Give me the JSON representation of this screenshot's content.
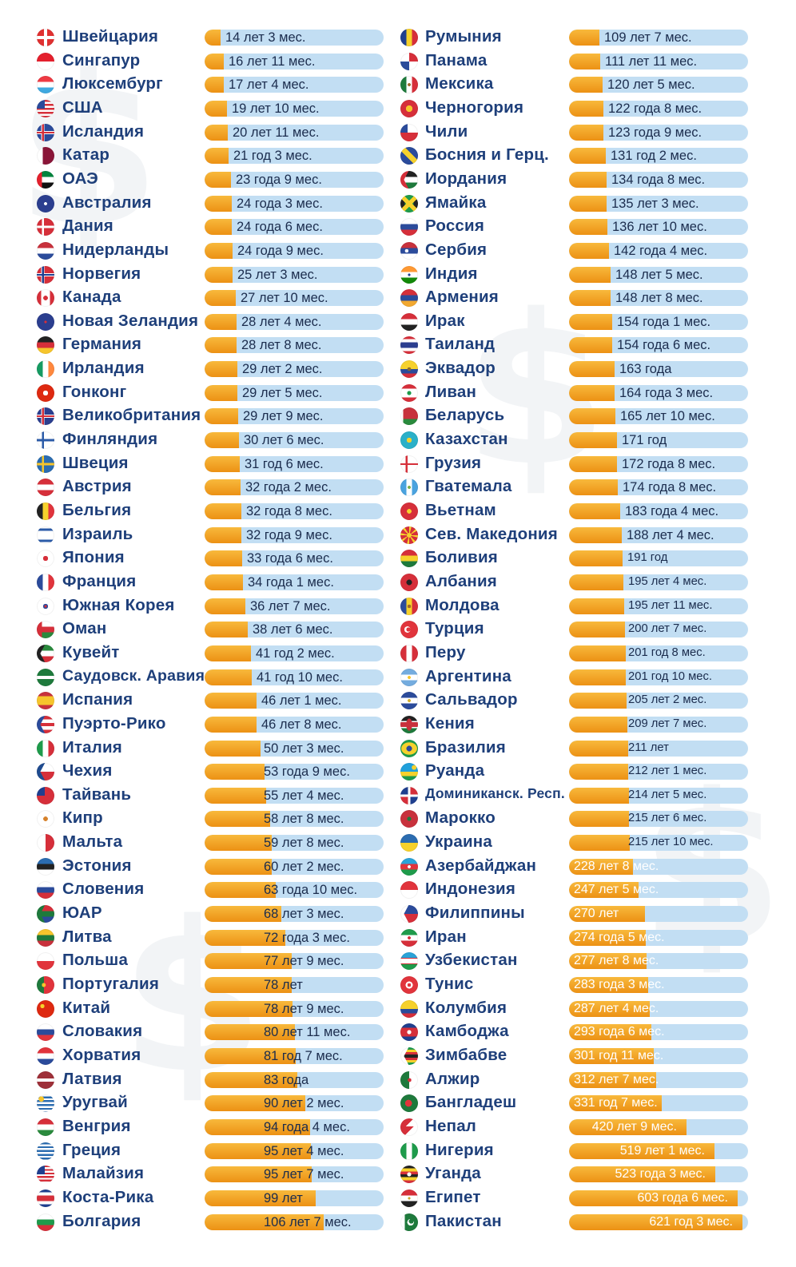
{
  "chart_data": {
    "type": "bar",
    "orientation": "horizontal",
    "title": "",
    "xlabel": "",
    "ylabel": "",
    "value_unit": "years",
    "columns": [
      {
        "xlim": [
          0,
          160
        ],
        "rows": [
          {
            "country": "Швейцария",
            "label": "14 лет 3 мес.",
            "value": 14.25,
            "flag": "switzerland-flag"
          },
          {
            "country": "Сингапур",
            "label": "16 лет 11 мес.",
            "value": 16.92,
            "flag": "singapore-flag"
          },
          {
            "country": "Люксембург",
            "label": "17 лет 4 мес.",
            "value": 17.33,
            "flag": "luxembourg-flag"
          },
          {
            "country": "США",
            "label": "19 лет 10 мес.",
            "value": 19.83,
            "flag": "usa-flag"
          },
          {
            "country": "Исландия",
            "label": "20 лет 11 мес.",
            "value": 20.92,
            "flag": "iceland-flag"
          },
          {
            "country": "Катар",
            "label": "21 год 3 мес.",
            "value": 21.25,
            "flag": "qatar-flag"
          },
          {
            "country": "ОАЭ",
            "label": "23 года 9 мес.",
            "value": 23.75,
            "flag": "uae-flag"
          },
          {
            "country": "Австралия",
            "label": "24 года 3 мес.",
            "value": 24.25,
            "flag": "australia-flag"
          },
          {
            "country": "Дания",
            "label": "24 года 6 мес.",
            "value": 24.5,
            "flag": "denmark-flag"
          },
          {
            "country": "Нидерланды",
            "label": "24 года 9 мес.",
            "value": 24.75,
            "flag": "netherlands-flag"
          },
          {
            "country": "Норвегия",
            "label": "25 лет 3 мес.",
            "value": 25.25,
            "flag": "norway-flag"
          },
          {
            "country": "Канада",
            "label": "27 лет 10 мес.",
            "value": 27.83,
            "flag": "canada-flag"
          },
          {
            "country": "Новая Зеландия",
            "label": "28 лет 4 мес.",
            "value": 28.33,
            "flag": "new-zealand-flag"
          },
          {
            "country": "Германия",
            "label": "28 лет 8 мес.",
            "value": 28.67,
            "flag": "germany-flag"
          },
          {
            "country": "Ирландия",
            "label": "29 лет 2 мес.",
            "value": 29.17,
            "flag": "ireland-flag"
          },
          {
            "country": "Гонконг",
            "label": "29 лет 5 мес.",
            "value": 29.42,
            "flag": "hong-kong-flag"
          },
          {
            "country": "Великобритания",
            "label": "29 лет 9 мес.",
            "value": 29.75,
            "flag": "uk-flag"
          },
          {
            "country": "Финляндия",
            "label": "30 лет 6 мес.",
            "value": 30.5,
            "flag": "finland-flag"
          },
          {
            "country": "Швеция",
            "label": "31 год 6 мес.",
            "value": 31.5,
            "flag": "sweden-flag"
          },
          {
            "country": "Австрия",
            "label": "32 года 2 мес.",
            "value": 32.17,
            "flag": "austria-flag"
          },
          {
            "country": "Бельгия",
            "label": "32 года 8 мес.",
            "value": 32.67,
            "flag": "belgium-flag"
          },
          {
            "country": "Израиль",
            "label": "32 года 9 мес.",
            "value": 32.75,
            "flag": "israel-flag"
          },
          {
            "country": "Япония",
            "label": "33 года 6 мес.",
            "value": 33.5,
            "flag": "japan-flag"
          },
          {
            "country": "Франция",
            "label": "34 года 1 мес.",
            "value": 34.08,
            "flag": "france-flag"
          },
          {
            "country": "Южная Корея",
            "label": "36 лет 7 мес.",
            "value": 36.58,
            "flag": "south-korea-flag"
          },
          {
            "country": "Оман",
            "label": "38 лет 6 мес.",
            "value": 38.5,
            "flag": "oman-flag"
          },
          {
            "country": "Кувейт",
            "label": "41 год 2 мес.",
            "value": 41.17,
            "flag": "kuwait-flag"
          },
          {
            "country": "Саудовск. Аравия",
            "label": "41 год 10 мес.",
            "value": 41.83,
            "flag": "saudi-arabia-flag"
          },
          {
            "country": "Испания",
            "label": "46 лет 1 мес.",
            "value": 46.08,
            "flag": "spain-flag"
          },
          {
            "country": "Пуэрто-Рико",
            "label": "46 лет 8 мес.",
            "value": 46.67,
            "flag": "puerto-rico-flag"
          },
          {
            "country": "Италия",
            "label": "50 лет 3 мес.",
            "value": 50.25,
            "flag": "italy-flag"
          },
          {
            "country": "Чехия",
            "label": "53 года 9 мес.",
            "value": 53.75,
            "flag": "czechia-flag"
          },
          {
            "country": "Тайвань",
            "label": "55 лет 4 мес.",
            "value": 55.33,
            "flag": "taiwan-flag"
          },
          {
            "country": "Кипр",
            "label": "58 лет 8 мес.",
            "value": 58.67,
            "flag": "cyprus-flag"
          },
          {
            "country": "Мальта",
            "label": "59 лет 8 мес.",
            "value": 59.67,
            "flag": "malta-flag"
          },
          {
            "country": "Эстония",
            "label": "60 лет 2 мес.",
            "value": 60.17,
            "flag": "estonia-flag"
          },
          {
            "country": "Словения",
            "label": "63 года 10 мес.",
            "value": 63.83,
            "flag": "slovenia-flag"
          },
          {
            "country": "ЮАР",
            "label": "68 лет 3 мес.",
            "value": 68.25,
            "flag": "south-africa-flag"
          },
          {
            "country": "Литва",
            "label": "72 года 3 мес.",
            "value": 72.25,
            "flag": "lithuania-flag"
          },
          {
            "country": "Польша",
            "label": "77 лет 9 мес.",
            "value": 77.75,
            "flag": "poland-flag"
          },
          {
            "country": "Португалия",
            "label": "78 лет",
            "value": 78,
            "flag": "portugal-flag"
          },
          {
            "country": "Китай",
            "label": "78 лет 9 мес.",
            "value": 78.75,
            "flag": "china-flag"
          },
          {
            "country": "Словакия",
            "label": "80 лет 11 мес.",
            "value": 80.92,
            "flag": "slovakia-flag"
          },
          {
            "country": "Хорватия",
            "label": "81 год 7 мес.",
            "value": 81.58,
            "flag": "croatia-flag"
          },
          {
            "country": "Латвия",
            "label": "83 года",
            "value": 83,
            "flag": "latvia-flag"
          },
          {
            "country": "Уругвай",
            "label": "90 лет 2 мес.",
            "value": 90.17,
            "flag": "uruguay-flag"
          },
          {
            "country": "Венгрия",
            "label": "94 года 4 мес.",
            "value": 94.33,
            "flag": "hungary-flag"
          },
          {
            "country": "Греция",
            "label": "95 лет 4 мес.",
            "value": 95.33,
            "flag": "greece-flag"
          },
          {
            "country": "Малайзия",
            "label": "95 лет 7 мес.",
            "value": 95.58,
            "flag": "malaysia-flag"
          },
          {
            "country": "Коста-Рика",
            "label": "99 лет",
            "value": 99,
            "flag": "costa-rica-flag"
          },
          {
            "country": "Болгария",
            "label": "106 лет 7 мес.",
            "value": 106.58,
            "flag": "bulgaria-flag"
          }
        ]
      },
      {
        "xlim": [
          0,
          640
        ],
        "rows": [
          {
            "country": "Румыния",
            "label": "109 лет 7 мес.",
            "value": 109.58,
            "flag": "romania-flag"
          },
          {
            "country": "Панама",
            "label": "111 лет 11 мес.",
            "value": 111.92,
            "flag": "panama-flag"
          },
          {
            "country": "Мексика",
            "label": "120 лет 5 мес.",
            "value": 120.42,
            "flag": "mexico-flag"
          },
          {
            "country": "Черногория",
            "label": "122 года 8 мес.",
            "value": 122.67,
            "flag": "montenegro-flag"
          },
          {
            "country": "Чили",
            "label": "123 года 9 мес.",
            "value": 123.75,
            "flag": "chile-flag"
          },
          {
            "country": "Босния и Герц.",
            "label": "131 год 2 мес.",
            "value": 131.17,
            "flag": "bosnia-flag"
          },
          {
            "country": "Иордания",
            "label": "134 года 8 мес.",
            "value": 134.67,
            "flag": "jordan-flag"
          },
          {
            "country": "Ямайка",
            "label": "135 лет 3 мес.",
            "value": 135.25,
            "flag": "jamaica-flag"
          },
          {
            "country": "Россия",
            "label": "136 лет 10 мес.",
            "value": 136.83,
            "flag": "russia-flag"
          },
          {
            "country": "Сербия",
            "label": "142 года 4 мес.",
            "value": 142.33,
            "flag": "serbia-flag"
          },
          {
            "country": "Индия",
            "label": "148 лет 5 мес.",
            "value": 148.42,
            "flag": "india-flag"
          },
          {
            "country": "Армения",
            "label": "148 лет 8 мес.",
            "value": 148.67,
            "flag": "armenia-flag"
          },
          {
            "country": "Ирак",
            "label": "154 года 1 мес.",
            "value": 154.08,
            "flag": "iraq-flag"
          },
          {
            "country": "Таиланд",
            "label": "154 года 6 мес.",
            "value": 154.5,
            "flag": "thailand-flag"
          },
          {
            "country": "Эквадор",
            "label": "163 года",
            "value": 163,
            "flag": "ecuador-flag"
          },
          {
            "country": "Ливан",
            "label": "164 года 3 мес.",
            "value": 164.25,
            "flag": "lebanon-flag"
          },
          {
            "country": "Беларусь",
            "label": "165 лет 10 мес.",
            "value": 165.83,
            "flag": "belarus-flag"
          },
          {
            "country": "Казахстан",
            "label": "171 год",
            "value": 171,
            "flag": "kazakhstan-flag"
          },
          {
            "country": "Грузия",
            "label": "172 года 8 мес.",
            "value": 172.67,
            "flag": "georgia-flag"
          },
          {
            "country": "Гватемала",
            "label": "174 года 8 мес.",
            "value": 174.67,
            "flag": "guatemala-flag"
          },
          {
            "country": "Вьетнам",
            "label": "183 года 4 мес.",
            "value": 183.33,
            "flag": "vietnam-flag"
          },
          {
            "country": "Сев. Македония",
            "label": "188 лет 4 мес.",
            "value": 188.33,
            "flag": "north-macedonia-flag"
          },
          {
            "country": "Боливия",
            "label": "191 год",
            "value": 191,
            "flag": "bolivia-flag"
          },
          {
            "country": "Албания",
            "label": "195 лет 4 мес.",
            "value": 195.33,
            "flag": "albania-flag"
          },
          {
            "country": "Молдова",
            "label": "195 лет 11 мес.",
            "value": 195.92,
            "flag": "moldova-flag"
          },
          {
            "country": "Турция",
            "label": "200 лет 7 мес.",
            "value": 200.58,
            "flag": "turkey-flag"
          },
          {
            "country": "Перу",
            "label": "201 год 8 мес.",
            "value": 201.67,
            "flag": "peru-flag"
          },
          {
            "country": "Аргентина",
            "label": "201 год 10 мес.",
            "value": 201.83,
            "flag": "argentina-flag"
          },
          {
            "country": "Сальвадор",
            "label": "205 лет 2 мес.",
            "value": 205.17,
            "flag": "el-salvador-flag"
          },
          {
            "country": "Кения",
            "label": "209 лет 7 мес.",
            "value": 209.58,
            "flag": "kenya-flag"
          },
          {
            "country": "Бразилия",
            "label": "211 лет",
            "value": 211,
            "flag": "brazil-flag"
          },
          {
            "country": "Руанда",
            "label": "212 лет 1 мес.",
            "value": 212.08,
            "flag": "rwanda-flag"
          },
          {
            "country": "Доминиканск. Респ.",
            "label": "214 лет 5 мес.",
            "value": 214.42,
            "flag": "dominican-republic-flag"
          },
          {
            "country": "Марокко",
            "label": "215 лет 6 мес.",
            "value": 215.5,
            "flag": "morocco-flag"
          },
          {
            "country": "Украина",
            "label": "215 лет 10 мес.",
            "value": 215.83,
            "flag": "ukraine-flag"
          },
          {
            "country": "Азербайджан",
            "label": "228 лет 8 мес.",
            "value": 228.67,
            "flag": "azerbaijan-flag"
          },
          {
            "country": "Индонезия",
            "label": "247 лет 5 мес.",
            "value": 247.42,
            "flag": "indonesia-flag"
          },
          {
            "country": "Филиппины",
            "label": "270 лет",
            "value": 270,
            "flag": "philippines-flag"
          },
          {
            "country": "Иран",
            "label": "274 года 5 мес.",
            "value": 274.42,
            "flag": "iran-flag"
          },
          {
            "country": "Узбекистан",
            "label": "277 лет 8 мес.",
            "value": 277.67,
            "flag": "uzbekistan-flag"
          },
          {
            "country": "Тунис",
            "label": "283 года 3 мес.",
            "value": 283.25,
            "flag": "tunisia-flag"
          },
          {
            "country": "Колумбия",
            "label": "287 лет 4 мес.",
            "value": 287.33,
            "flag": "colombia-flag"
          },
          {
            "country": "Камбоджа",
            "label": "293 года 6 мес.",
            "value": 293.5,
            "flag": "cambodia-flag"
          },
          {
            "country": "Зимбабве",
            "label": "301 год 11 мес.",
            "value": 301.92,
            "flag": "zimbabwe-flag"
          },
          {
            "country": "Алжир",
            "label": "312 лет 7 мес.",
            "value": 312.58,
            "flag": "algeria-flag"
          },
          {
            "country": "Бангладеш",
            "label": "331 год 7 мес.",
            "value": 331.58,
            "flag": "bangladesh-flag"
          },
          {
            "country": "Непал",
            "label": "420 лет 9 мес.",
            "value": 420.75,
            "flag": "nepal-flag"
          },
          {
            "country": "Нигерия",
            "label": "519 лет 1 мес.",
            "value": 519.08,
            "flag": "nigeria-flag"
          },
          {
            "country": "Уганда",
            "label": "523 года 3 мес.",
            "value": 523.25,
            "flag": "uganda-flag"
          },
          {
            "country": "Египет",
            "label": "603 года 6 мес.",
            "value": 603.5,
            "flag": "egypt-flag"
          },
          {
            "country": "Пакистан",
            "label": "621 год 3 мес.",
            "value": 621.25,
            "flag": "pakistan-flag"
          }
        ]
      }
    ],
    "colors": {
      "bar_fill": "#f0a023",
      "bar_track": "#c2def3",
      "country_text": "#1e3f7a",
      "value_text": "#1b2c4d"
    }
  }
}
